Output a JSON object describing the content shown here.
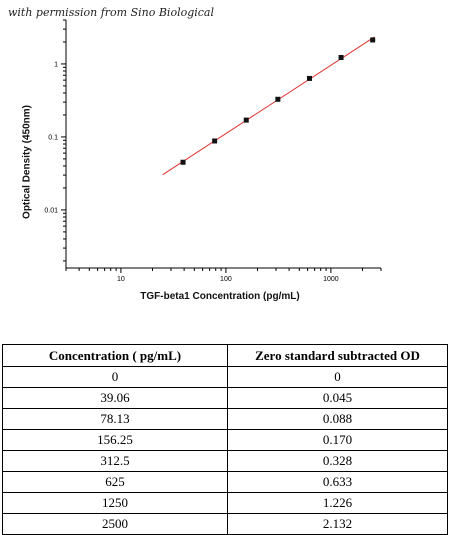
{
  "credit": "with permission from Sino Biological",
  "chart_data": {
    "type": "scatter",
    "xlabel": "TGF-beta1 Concentration (pg/mL)",
    "ylabel": "Optical Density (450nm)",
    "xscale": "log",
    "yscale": "log",
    "xlim": [
      3,
      3000
    ],
    "ylim": [
      0.0016,
      4
    ],
    "x_ticks": [
      10,
      100,
      1000
    ],
    "x_tick_labels": [
      "10",
      "100",
      "1000"
    ],
    "y_ticks": [
      0.01,
      0.1,
      1
    ],
    "y_tick_labels": [
      "0.01",
      "0.1",
      "1"
    ],
    "grid": false,
    "points": [
      {
        "x": 39.06,
        "y": 0.045
      },
      {
        "x": 78.13,
        "y": 0.088
      },
      {
        "x": 156.25,
        "y": 0.17
      },
      {
        "x": 312.5,
        "y": 0.328
      },
      {
        "x": 625,
        "y": 0.633
      },
      {
        "x": 1250,
        "y": 1.226
      },
      {
        "x": 2500,
        "y": 2.132
      }
    ],
    "fit_line": {
      "x_start": 25,
      "x_end": 2600,
      "color": "#e03030"
    },
    "marker_color": "#111111"
  },
  "table": {
    "headers": [
      "Concentration ( pg/mL)",
      "Zero standard subtracted OD"
    ],
    "rows": [
      [
        "0",
        "0"
      ],
      [
        "39.06",
        "0.045"
      ],
      [
        "78.13",
        "0.088"
      ],
      [
        "156.25",
        "0.170"
      ],
      [
        "312.5",
        "0.328"
      ],
      [
        "625",
        "0.633"
      ],
      [
        "1250",
        "1.226"
      ],
      [
        "2500",
        "2.132"
      ]
    ]
  }
}
